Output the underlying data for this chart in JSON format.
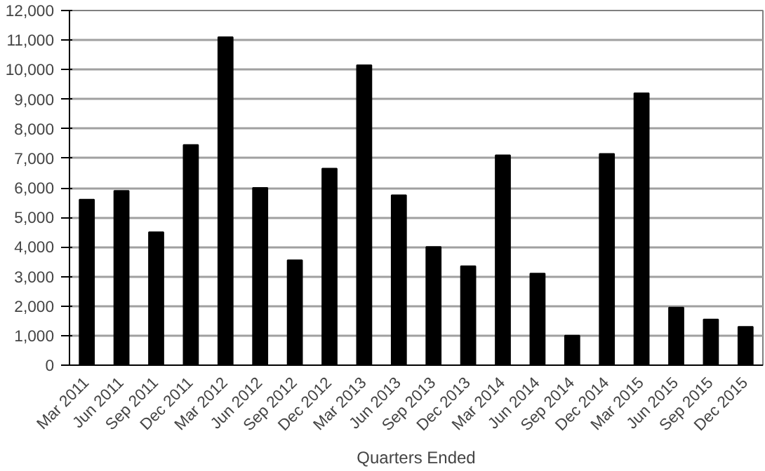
{
  "chart_data": {
    "type": "bar",
    "xlabel": "Quarters Ended",
    "categories": [
      "Mar 2011",
      "Jun 2011",
      "Sep 2011",
      "Dec 2011",
      "Mar 2012",
      "Jun 2012",
      "Sep 2012",
      "Dec 2012",
      "Mar 2013",
      "Jun 2013",
      "Sep 2013",
      "Dec 2013",
      "Mar 2014",
      "Jun 2014",
      "Sep 2014",
      "Dec 2014",
      "Mar 2015",
      "Jun 2015",
      "Sep 2015",
      "Dec 2015"
    ],
    "values": [
      5600,
      5900,
      4500,
      7450,
      11100,
      6000,
      3550,
      6650,
      10150,
      5750,
      4000,
      3350,
      7100,
      3100,
      1000,
      7150,
      9200,
      1950,
      1550,
      1300
    ],
    "color": "#000000",
    "ylim": [
      0,
      12000
    ],
    "yticks": [
      {
        "value": 0,
        "label": "0"
      },
      {
        "value": 1000,
        "label": "1,000"
      },
      {
        "value": 2000,
        "label": "2,000"
      },
      {
        "value": 3000,
        "label": "3,000"
      },
      {
        "value": 4000,
        "label": "4,000"
      },
      {
        "value": 5000,
        "label": "5,000"
      },
      {
        "value": 6000,
        "label": "6,000"
      },
      {
        "value": 7000,
        "label": "7,000"
      },
      {
        "value": 8000,
        "label": "8,000"
      },
      {
        "value": 9000,
        "label": "9,000"
      },
      {
        "value": 10000,
        "label": "10,000"
      },
      {
        "value": 11000,
        "label": "11,000"
      },
      {
        "value": 12000,
        "label": "12,000"
      }
    ],
    "grid": "y"
  }
}
